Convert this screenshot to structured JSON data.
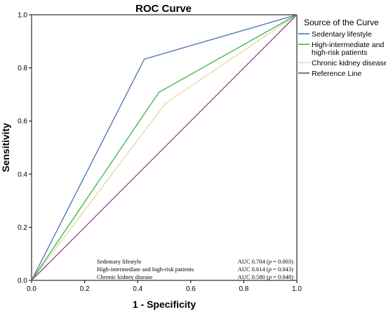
{
  "chart_data": {
    "type": "line",
    "title": "ROC Curve",
    "xlabel": "1 - Specificity",
    "ylabel": "Sensitivity",
    "xlim": [
      0.0,
      1.0
    ],
    "ylim": [
      0.0,
      1.0
    ],
    "xticks": [
      "0.0",
      "0.2",
      "0.4",
      "0.6",
      "0.8",
      "1.0"
    ],
    "yticks": [
      "0.0",
      "0.2",
      "0.4",
      "0.6",
      "0.8",
      "1.0"
    ],
    "grid": false,
    "legend": {
      "title": "Source of the Curve",
      "placement": "right-top"
    },
    "series": [
      {
        "name": "Sedentary lifestyle",
        "legend_lines": [
          "Sedentary lifestyle"
        ],
        "color": "#4a6fb5",
        "x": [
          0.0,
          0.425,
          1.0
        ],
        "y": [
          0.0,
          0.833,
          1.0
        ]
      },
      {
        "name": "High-intermediate and high-risk patients",
        "legend_lines": [
          "High-intermediate and",
          "high-risk patients"
        ],
        "color": "#39b54a",
        "x": [
          0.0,
          0.48,
          1.0
        ],
        "y": [
          0.0,
          0.708,
          1.0
        ]
      },
      {
        "name": "Chronic kidney disease",
        "legend_lines": [
          "Chronic kidney disease"
        ],
        "color": "#dcdca6",
        "x": [
          0.0,
          0.505,
          1.0
        ],
        "y": [
          0.0,
          0.667,
          1.0
        ]
      },
      {
        "name": "Reference Line",
        "legend_lines": [
          "Reference Line"
        ],
        "color": "#8e3a91",
        "x": [
          0.0,
          1.0
        ],
        "y": [
          0.0,
          1.0
        ]
      }
    ],
    "annotations": [
      {
        "label": "Sedentary lifestyle",
        "auc": "AUC 0.704 (",
        "p": "p",
        "pval": " = 0.003)"
      },
      {
        "label": "High-intermediate and high-risk patients",
        "auc": "AUC 0.614 (",
        "p": "p",
        "pval": " = 0.043)"
      },
      {
        "label": "Chronic kidney disease",
        "auc": "AUC 0.580 (",
        "p": "p",
        "pval": " = 0.048)"
      }
    ]
  }
}
